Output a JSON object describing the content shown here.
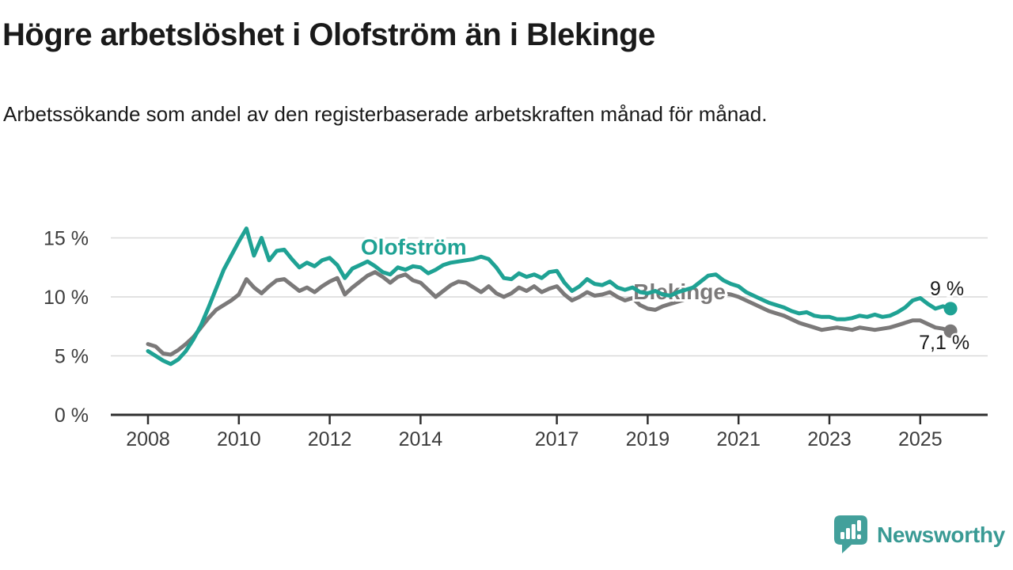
{
  "header": {
    "title": "Högre arbetslöshet i Olofström än i Blekinge",
    "subtitle": "Arbetssökande som andel av den registerbaserade arbetskraften månad för månad."
  },
  "chart_data": {
    "type": "line",
    "title": "Högre arbetslöshet i Olofström än i Blekinge",
    "x_start": 2008.0,
    "x_step_years": 0.166667,
    "x_unit": "year (monthly data)",
    "ylim": [
      0,
      16.5
    ],
    "xlim": [
      2008,
      2026
    ],
    "grid": "horizontal",
    "legend": "inline-annotations",
    "yticks": [
      {
        "value": 0,
        "label": "0 %"
      },
      {
        "value": 5,
        "label": "5 %"
      },
      {
        "value": 10,
        "label": "10 %"
      },
      {
        "value": 15,
        "label": "15 %"
      }
    ],
    "xticks": [
      {
        "value": 2008,
        "label": "2008"
      },
      {
        "value": 2010,
        "label": "2010"
      },
      {
        "value": 2012,
        "label": "2012"
      },
      {
        "value": 2014,
        "label": "2014"
      },
      {
        "value": 2017,
        "label": "2017"
      },
      {
        "value": 2019,
        "label": "2019"
      },
      {
        "value": 2021,
        "label": "2021"
      },
      {
        "value": 2023,
        "label": "2023"
      },
      {
        "value": 2025,
        "label": "2025"
      }
    ],
    "series": [
      {
        "name": "Olofström",
        "color": "#1fa294",
        "end_label": "9 %",
        "end_value": 9.0,
        "annotation": {
          "x": 2013.85,
          "y": 13.6
        },
        "end_label_offset": {
          "dx": 17,
          "dy": -17
        },
        "values": [
          5.4,
          5.0,
          4.6,
          4.3,
          4.7,
          5.4,
          6.4,
          7.6,
          9.1,
          10.7,
          12.3,
          13.5,
          14.7,
          15.8,
          13.5,
          15.0,
          13.1,
          13.9,
          14.0,
          13.2,
          12.5,
          12.9,
          12.6,
          13.1,
          13.3,
          12.7,
          11.6,
          12.4,
          12.7,
          13.0,
          12.6,
          12.1,
          11.9,
          12.5,
          12.3,
          12.6,
          12.5,
          12.0,
          12.3,
          12.7,
          12.9,
          13.0,
          13.1,
          13.2,
          13.4,
          13.2,
          12.5,
          11.6,
          11.5,
          12.0,
          11.7,
          11.9,
          11.6,
          12.1,
          12.2,
          11.2,
          10.5,
          10.9,
          11.5,
          11.1,
          11.0,
          11.3,
          10.8,
          10.6,
          10.8,
          10.4,
          10.3,
          10.5,
          10.2,
          10.1,
          10.4,
          10.6,
          10.8,
          11.3,
          11.8,
          11.9,
          11.4,
          11.1,
          10.9,
          10.4,
          10.1,
          9.8,
          9.5,
          9.3,
          9.1,
          8.8,
          8.6,
          8.7,
          8.4,
          8.3,
          8.3,
          8.1,
          8.1,
          8.2,
          8.4,
          8.3,
          8.5,
          8.3,
          8.4,
          8.7,
          9.1,
          9.7,
          9.9,
          9.4,
          9.0,
          9.2,
          9.0
        ]
      },
      {
        "name": "Blekinge",
        "color": "#7b7979",
        "end_label": "7,1 %",
        "end_value": 7.1,
        "annotation": {
          "x": 2019.7,
          "y": 9.8
        },
        "end_label_offset": {
          "dx": 24,
          "dy": 23
        },
        "values": [
          6.0,
          5.8,
          5.2,
          5.1,
          5.5,
          6.0,
          6.6,
          7.4,
          8.2,
          8.9,
          9.3,
          9.7,
          10.2,
          11.5,
          10.8,
          10.3,
          10.9,
          11.4,
          11.5,
          11.0,
          10.5,
          10.8,
          10.4,
          10.9,
          11.3,
          11.6,
          10.2,
          10.8,
          11.3,
          11.8,
          12.1,
          11.7,
          11.2,
          11.7,
          11.9,
          11.4,
          11.2,
          10.6,
          10.0,
          10.5,
          11.0,
          11.3,
          11.2,
          10.8,
          10.4,
          10.9,
          10.3,
          10.0,
          10.3,
          10.8,
          10.5,
          10.9,
          10.4,
          10.7,
          10.9,
          10.2,
          9.7,
          10.0,
          10.4,
          10.1,
          10.2,
          10.4,
          10.0,
          9.7,
          9.9,
          9.3,
          9.0,
          8.9,
          9.2,
          9.4,
          9.6,
          9.8,
          10.0,
          10.2,
          10.4,
          10.5,
          10.3,
          10.2,
          10.0,
          9.7,
          9.4,
          9.1,
          8.8,
          8.6,
          8.4,
          8.1,
          7.8,
          7.6,
          7.4,
          7.2,
          7.3,
          7.4,
          7.3,
          7.2,
          7.4,
          7.3,
          7.2,
          7.3,
          7.4,
          7.6,
          7.8,
          8.0,
          8.0,
          7.7,
          7.4,
          7.3,
          7.1
        ]
      }
    ]
  },
  "footer": {
    "brand": "Newsworthy"
  },
  "colors": {
    "accent_teal": "#1fa294",
    "series_gray": "#7b7979",
    "grid": "#d9d9d9",
    "axis": "#2f2f2f",
    "tick_label": "#3d3d3d",
    "text": "#1a1a1a",
    "logo": "#399a94"
  }
}
